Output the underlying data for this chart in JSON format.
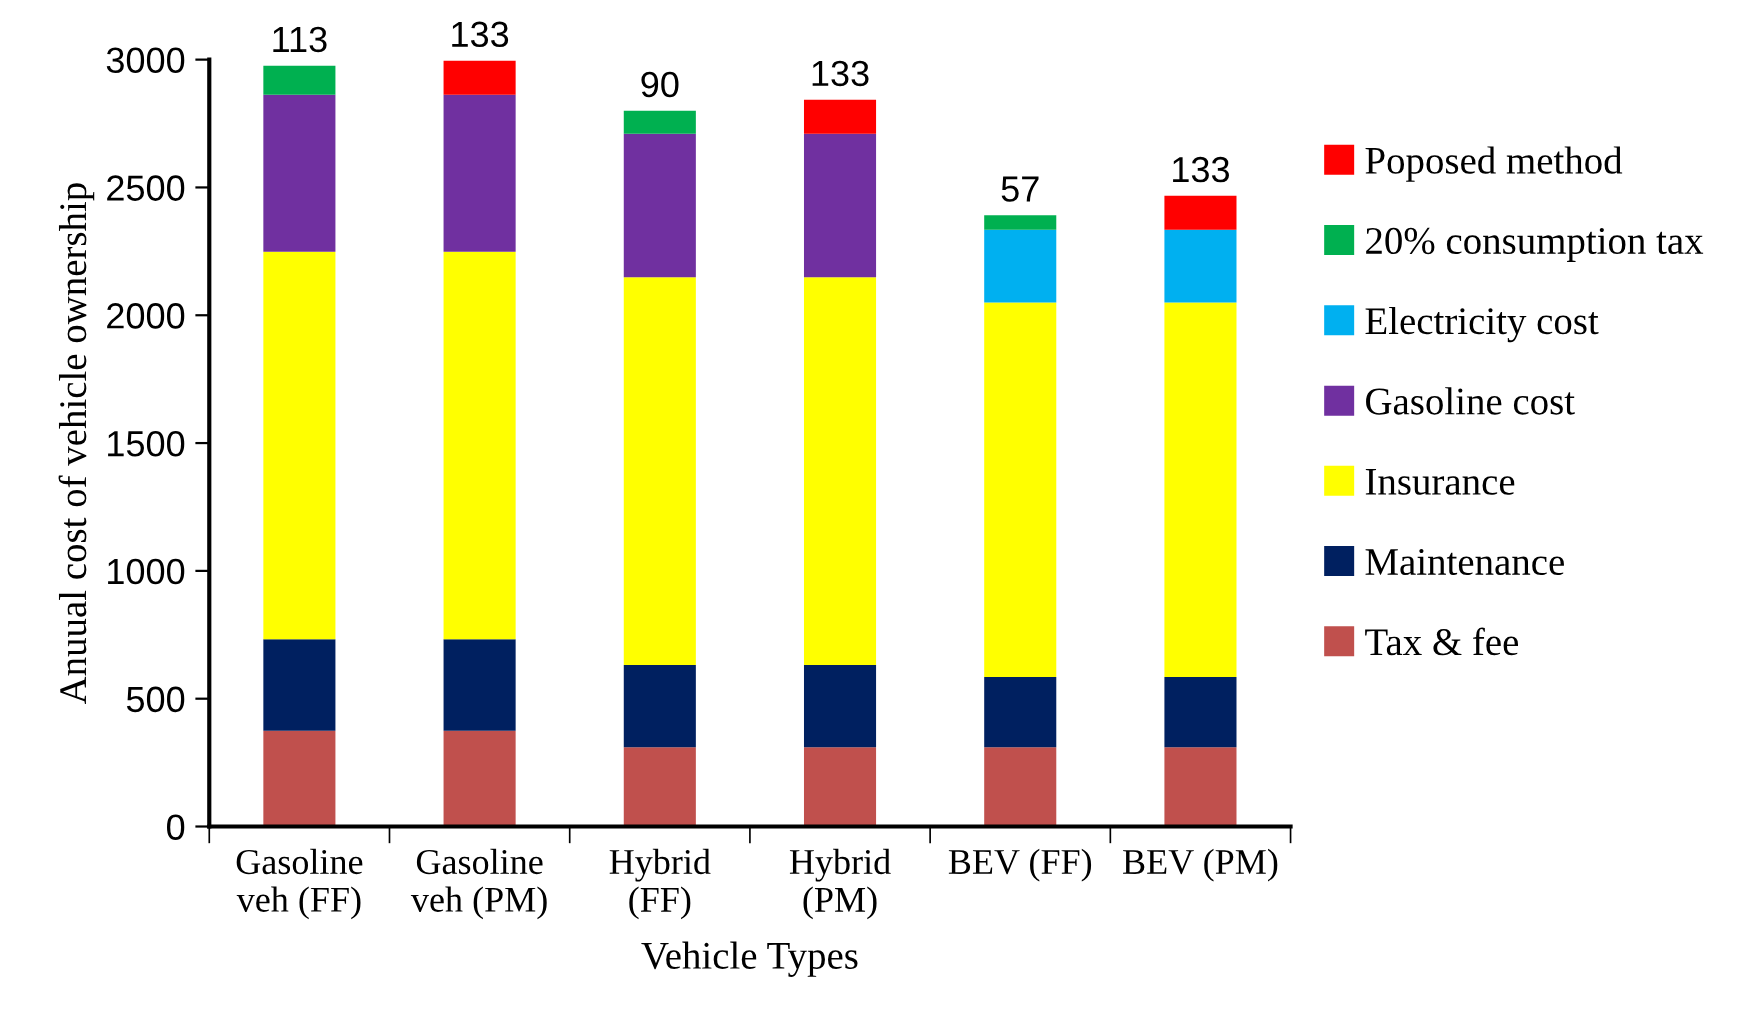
{
  "chart_data": {
    "type": "bar",
    "stacked": true,
    "xlabel": "Vehicle Types",
    "ylabel": "Anuual cost of vehicle ownership",
    "categories": [
      "Gasoline\nveh (FF)",
      "Gasoline\nveh (PM)",
      "Hybrid\n(FF)",
      "Hybrid\n(PM)",
      "BEV (FF)",
      "BEV (PM)"
    ],
    "series": [
      {
        "name": "Tax & fee",
        "color": "#c0504d",
        "values": [
          375,
          375,
          310,
          310,
          310,
          310
        ]
      },
      {
        "name": "Maintenance",
        "color": "#002060",
        "values": [
          358,
          358,
          322,
          322,
          275,
          275
        ]
      },
      {
        "name": "Insurance",
        "color": "#ffff00",
        "values": [
          1515,
          1515,
          1517,
          1517,
          1465,
          1465
        ]
      },
      {
        "name": "Gasoline cost",
        "color": "#7030a0",
        "values": [
          615,
          615,
          561,
          561,
          null,
          null
        ]
      },
      {
        "name": "Electricity cost",
        "color": "#00b0f0",
        "values": [
          null,
          null,
          null,
          null,
          284,
          284
        ]
      },
      {
        "name": "20% consumption tax",
        "color": "#00b050",
        "values": [
          113,
          null,
          90,
          null,
          57,
          null
        ],
        "value_labels": [
          "113",
          null,
          "90",
          null,
          "57",
          null
        ]
      },
      {
        "name": "Poposed method",
        "color": "#ff0000",
        "values": [
          null,
          133,
          null,
          133,
          null,
          133
        ],
        "value_labels": [
          null,
          "133",
          null,
          "133",
          null,
          "133"
        ]
      }
    ],
    "ylim": [
      0,
      3000
    ],
    "yticks": [
      0,
      500,
      1000,
      1500,
      2000,
      2500,
      3000
    ],
    "grid": false,
    "legend": "right"
  }
}
